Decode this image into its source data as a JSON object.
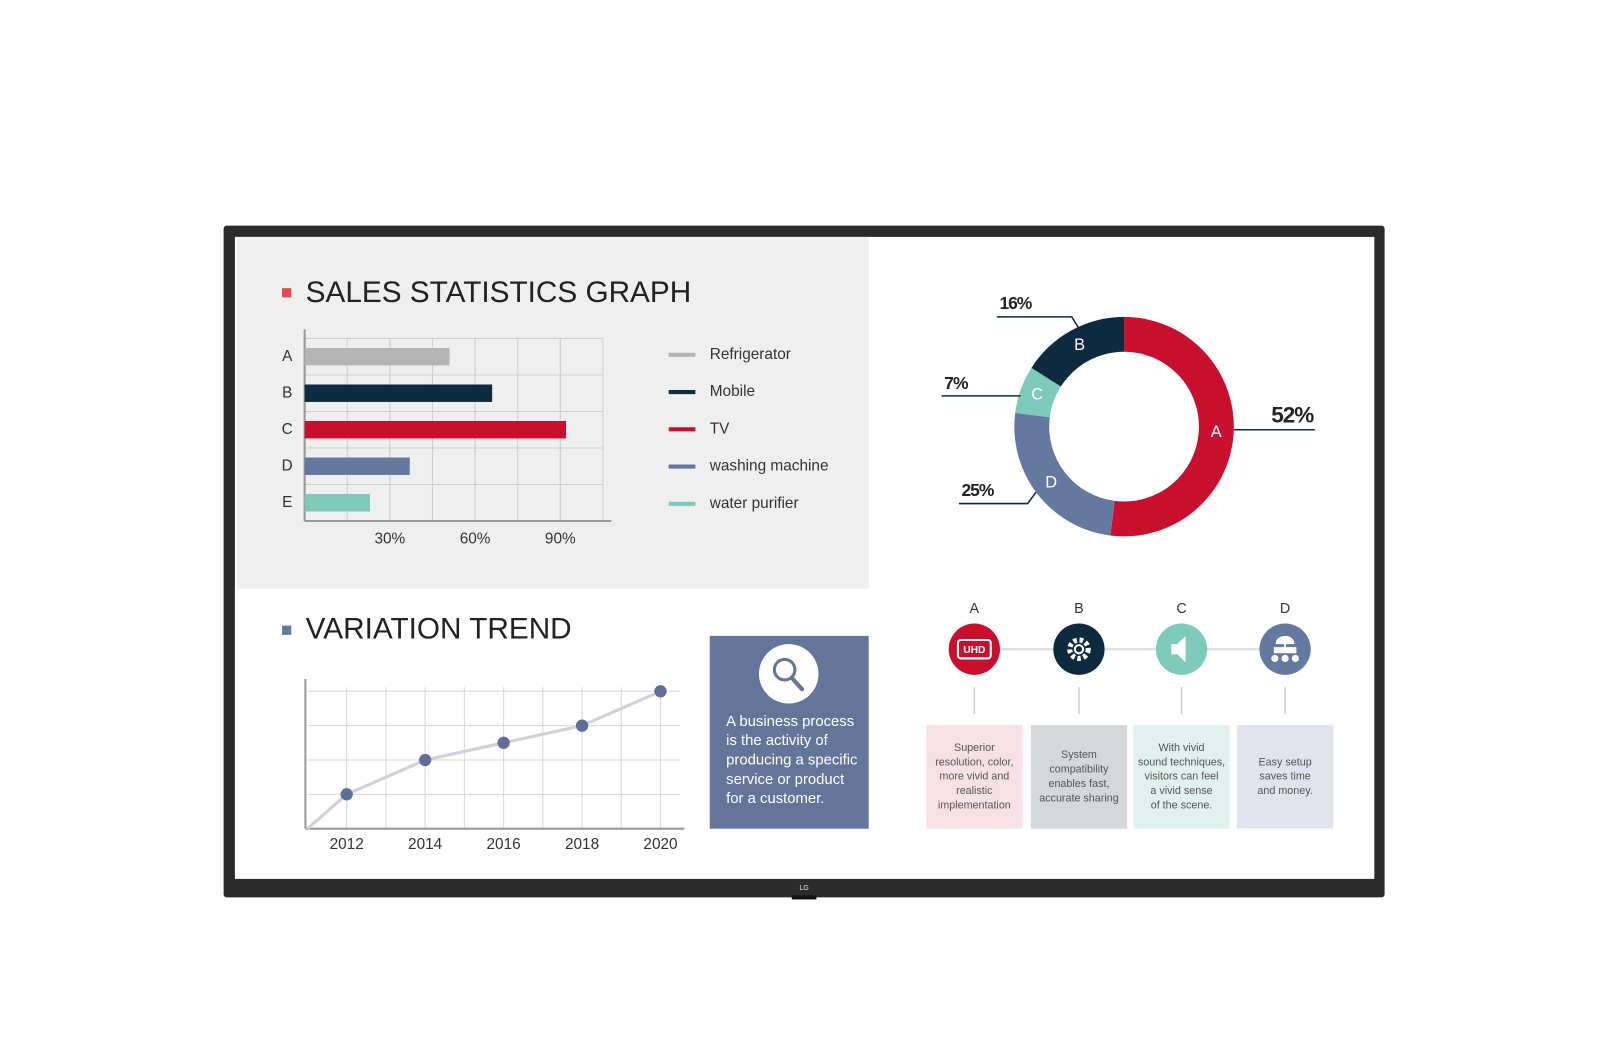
{
  "device": {
    "logo": "LG"
  },
  "chart_data": [
    {
      "type": "bar",
      "orientation": "horizontal",
      "title": "SALES STATISTICS GRAPH",
      "title_marker_color": "#e8464e",
      "categories": [
        "A",
        "B",
        "C",
        "D",
        "E"
      ],
      "values": [
        51,
        66,
        92,
        37,
        23
      ],
      "colors": [
        "#b5b5b5",
        "#0d2a3f",
        "#c8102e",
        "#6478a0",
        "#7ecabb"
      ],
      "legend": [
        "Refrigerator",
        "Mobile",
        "TV",
        "washing machine",
        "water purifier"
      ],
      "xlim": [
        0,
        105
      ],
      "xticks": [
        {
          "value": 30,
          "label": "30%"
        },
        {
          "value": 60,
          "label": "60%"
        },
        {
          "value": 90,
          "label": "90%"
        }
      ],
      "grid": true
    },
    {
      "type": "donut",
      "categories": [
        "A",
        "D",
        "C",
        "B"
      ],
      "values": [
        52,
        25,
        7,
        16
      ],
      "value_labels": [
        "52%",
        "25%",
        "7%",
        "16%"
      ],
      "colors": [
        "#c8102e",
        "#6478a0",
        "#7ecabb",
        "#0d2a3f"
      ]
    },
    {
      "type": "line",
      "title": "VARIATION TREND",
      "title_marker_color": "#6478a0",
      "x": [
        2012,
        2014,
        2016,
        2018,
        2020
      ],
      "values": [
        1,
        2,
        2.5,
        3,
        4
      ],
      "color": "#cfd2d8",
      "marker_color": "#5d6f96",
      "xlim": [
        2011,
        2020.5
      ],
      "ylim": [
        0,
        4.3
      ],
      "xticks": [
        2012,
        2014,
        2016,
        2018,
        2020
      ],
      "ygrid": [
        1,
        2,
        3,
        4
      ],
      "grid": true
    }
  ],
  "info_box": {
    "lines": [
      "A business process",
      "is the activity of",
      "producing a specific",
      "service or product",
      "for a customer."
    ]
  },
  "features": [
    {
      "letter": "A",
      "icon_text": "UHD",
      "lines": [
        "Superior",
        "resolution, color,",
        "more vivid and",
        "realistic",
        "implementation"
      ]
    },
    {
      "letter": "B",
      "lines": [
        "System",
        "compatibility",
        "enables fast,",
        "accurate sharing"
      ]
    },
    {
      "letter": "C",
      "lines": [
        "With vivid",
        "sound techniques,",
        "visitors can feel",
        "a vivid sense",
        "of the scene."
      ]
    },
    {
      "letter": "D",
      "lines": [
        "Easy setup",
        "saves time",
        "and money."
      ]
    }
  ]
}
